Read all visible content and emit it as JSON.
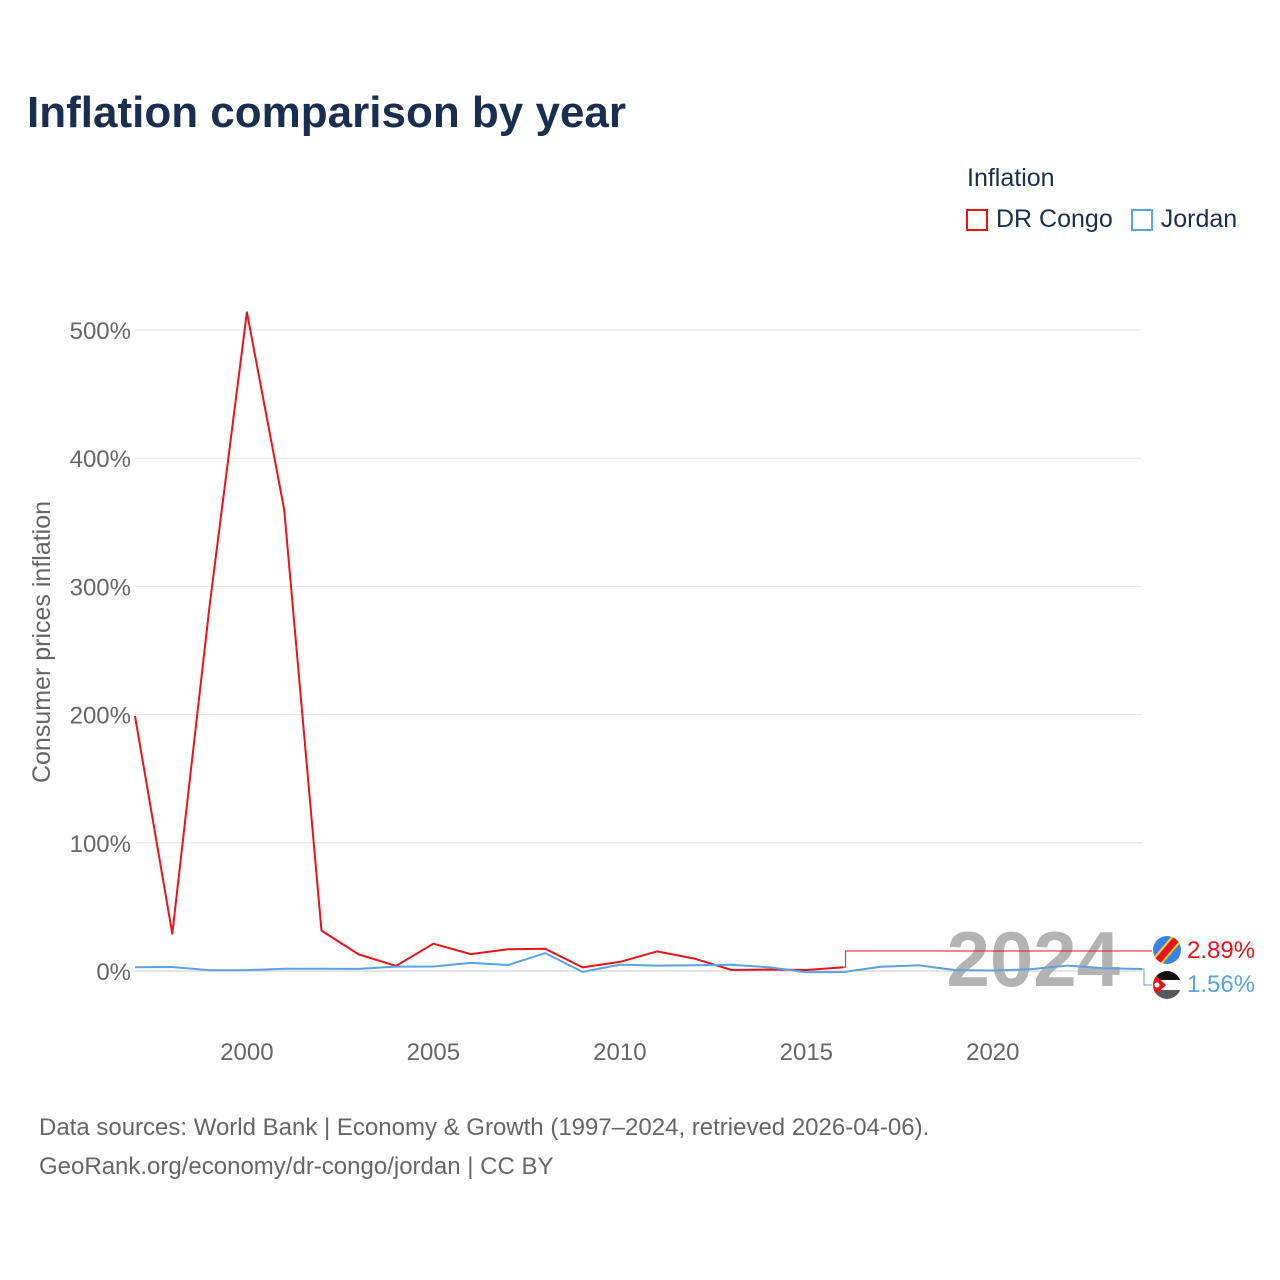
{
  "title": "Inflation comparison by year",
  "legend": {
    "title": "Inflation",
    "items": [
      {
        "label": "DR Congo",
        "color": "#e8141b"
      },
      {
        "label": "Jordan",
        "color": "#5aa2e0"
      }
    ]
  },
  "source": {
    "line1": "Data sources: World Bank | Economy & Growth (1997–2024, retrieved 2026-04-06).",
    "line2": "GeoRank.org/economy/dr-congo/jordan | CC BY"
  },
  "chart_data": {
    "type": "line",
    "title": "Inflation comparison by year",
    "xlabel": "",
    "ylabel": "Consumer prices inflation",
    "xlim": [
      1997,
      2024
    ],
    "ylim": [
      0,
      500
    ],
    "xticks": [
      "2000",
      "2005",
      "2010",
      "2015",
      "2020"
    ],
    "yticks": [
      "0%",
      "100%",
      "200%",
      "300%",
      "400%",
      "500%"
    ],
    "grid": true,
    "year_watermark": "2024",
    "x": [
      1997,
      1998,
      1999,
      2000,
      2001,
      2002,
      2003,
      2004,
      2005,
      2006,
      2007,
      2008,
      2009,
      2010,
      2011,
      2012,
      2013,
      2014,
      2015,
      2016,
      2017,
      2018,
      2019,
      2020,
      2021,
      2022,
      2023,
      2024
    ],
    "series": [
      {
        "name": "DR Congo",
        "color": "#e8141b",
        "end_label": "2.89%",
        "values": [
          199,
          29.1,
          284.9,
          513.9,
          359.9,
          31.5,
          12.9,
          4.0,
          21.3,
          13.2,
          16.9,
          17.3,
          2.8,
          7.1,
          15.3,
          9.7,
          0.8,
          1.2,
          0.8,
          2.9,
          null,
          null,
          null,
          null,
          null,
          null,
          null,
          null
        ]
      },
      {
        "name": "Jordan",
        "color": "#5aa2e0",
        "end_label": "1.56%",
        "values": [
          3.0,
          3.1,
          0.6,
          0.7,
          1.8,
          1.8,
          1.6,
          3.4,
          3.5,
          6.3,
          4.7,
          14.0,
          -0.7,
          5.0,
          4.2,
          4.5,
          4.8,
          2.9,
          -0.9,
          -0.8,
          3.3,
          4.5,
          0.7,
          0.4,
          1.3,
          4.2,
          2.1,
          1.56
        ]
      }
    ]
  }
}
